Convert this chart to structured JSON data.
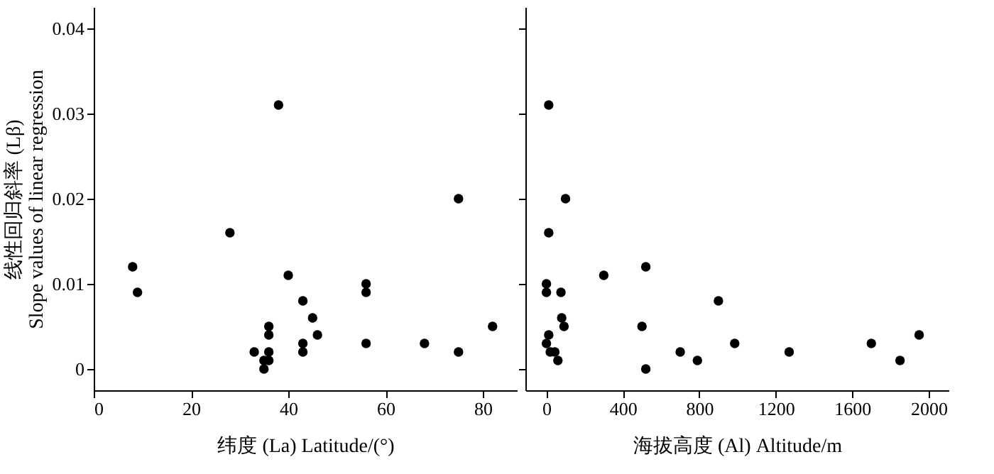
{
  "chart_data": [
    {
      "type": "scatter",
      "xlabel": "纬度 (La)  Latitude/(°)",
      "ylabel": "线性回归斜率 (Lβ)\nSlope values of linear regression",
      "xlim": [
        0,
        87
      ],
      "xticks": [
        0,
        20,
        40,
        60,
        80
      ],
      "ylim": [
        -0.0025,
        0.0425
      ],
      "yticks": [
        0,
        0.01,
        0.02,
        0.03,
        0.04
      ],
      "grid": false,
      "marker": "circle",
      "series": [
        {
          "color": "#000000",
          "x": [
            8,
            9,
            28,
            38,
            40,
            43,
            45,
            46,
            43,
            43,
            36,
            36,
            36,
            36,
            35,
            35,
            33,
            56,
            56,
            56,
            68,
            75,
            75,
            82
          ],
          "values": [
            0.012,
            0.009,
            0.016,
            0.031,
            0.011,
            0.008,
            0.006,
            0.004,
            0.003,
            0.002,
            0.005,
            0.004,
            0.002,
            0.001,
            0.001,
            0,
            0.002,
            0.01,
            0.009,
            0.003,
            0.003,
            0.02,
            0.002,
            0.005
          ]
        }
      ]
    },
    {
      "type": "scatter",
      "xlabel": "海拔高度 (Al)  Altitude/m",
      "xlim": [
        -110,
        2104
      ],
      "xticks": [
        0,
        400,
        800,
        1200,
        1600,
        2000
      ],
      "ylim": [
        -0.0025,
        0.0425
      ],
      "yticks": [
        0,
        0.01,
        0.02,
        0.03,
        0.04
      ],
      "grid": false,
      "marker": "circle",
      "tick_labels": "x",
      "series": [
        {
          "color": "#000000",
          "x": [
            12,
            100,
            12,
            300,
            520,
            0,
            0,
            76,
            900,
            80,
            92,
            500,
            12,
            0,
            20,
            44,
            60,
            985,
            700,
            790,
            520,
            1270,
            1700,
            1850,
            1950
          ],
          "values": [
            0.031,
            0.02,
            0.016,
            0.011,
            0.012,
            0.01,
            0.009,
            0.009,
            0.008,
            0.006,
            0.005,
            0.005,
            0.004,
            0.003,
            0.002,
            0.002,
            0.001,
            0.003,
            0.002,
            0.001,
            0,
            0.002,
            0.003,
            0.001,
            0.004
          ]
        }
      ]
    }
  ]
}
